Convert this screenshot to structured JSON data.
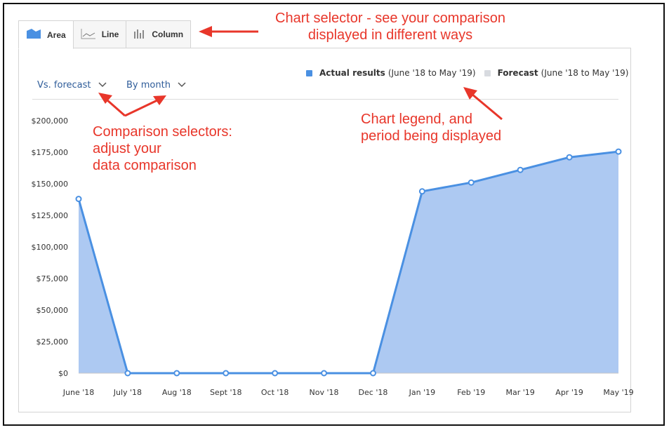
{
  "tabs": [
    {
      "label": "Area",
      "icon": "area-chart-icon",
      "active": true
    },
    {
      "label": "Line",
      "icon": "line-chart-icon",
      "active": false
    },
    {
      "label": "Column",
      "icon": "column-chart-icon",
      "active": false
    }
  ],
  "selectors": {
    "comparison": "Vs. forecast",
    "period": "By month"
  },
  "legend": {
    "actual_bold": "Actual results",
    "actual_period": "(June '18 to May '19)",
    "forecast_bold": "Forecast",
    "forecast_period": "(June '18 to May '19)"
  },
  "annotations": {
    "chart_selector": [
      "Chart selector - see your comparison",
      "displayed in different ways"
    ],
    "comparison_selectors": [
      "Comparison selectors:",
      "adjust your",
      "data comparison"
    ],
    "chart_legend": [
      "Chart legend, and",
      "period being displayed"
    ]
  },
  "colors": {
    "actual_line": "#4a90e2",
    "actual_fill": "#adc9f2",
    "forecast_swatch": "#d8dbe0",
    "annotation": "#e8362a",
    "link": "#2f5d9a"
  },
  "chart_data": {
    "type": "area",
    "categories": [
      "June '18",
      "July '18",
      "Aug '18",
      "Sept '18",
      "Oct '18",
      "Nov '18",
      "Dec '18",
      "Jan '19",
      "Feb '19",
      "Mar '19",
      "Apr '19",
      "May '19"
    ],
    "series": [
      {
        "name": "Actual results",
        "values": [
          138000,
          0,
          0,
          0,
          0,
          0,
          0,
          144000,
          151000,
          161000,
          171000,
          175500
        ]
      }
    ],
    "yticks": [
      0,
      25000,
      50000,
      75000,
      100000,
      125000,
      150000,
      175000,
      200000
    ],
    "ytick_labels": [
      "$0",
      "$25,000",
      "$50,000",
      "$75,000",
      "$100,000",
      "$125,000",
      "$150,000",
      "$175,000",
      "$200,000"
    ],
    "ylim": [
      0,
      200000
    ],
    "grid": false,
    "legend_position": "top-right"
  }
}
